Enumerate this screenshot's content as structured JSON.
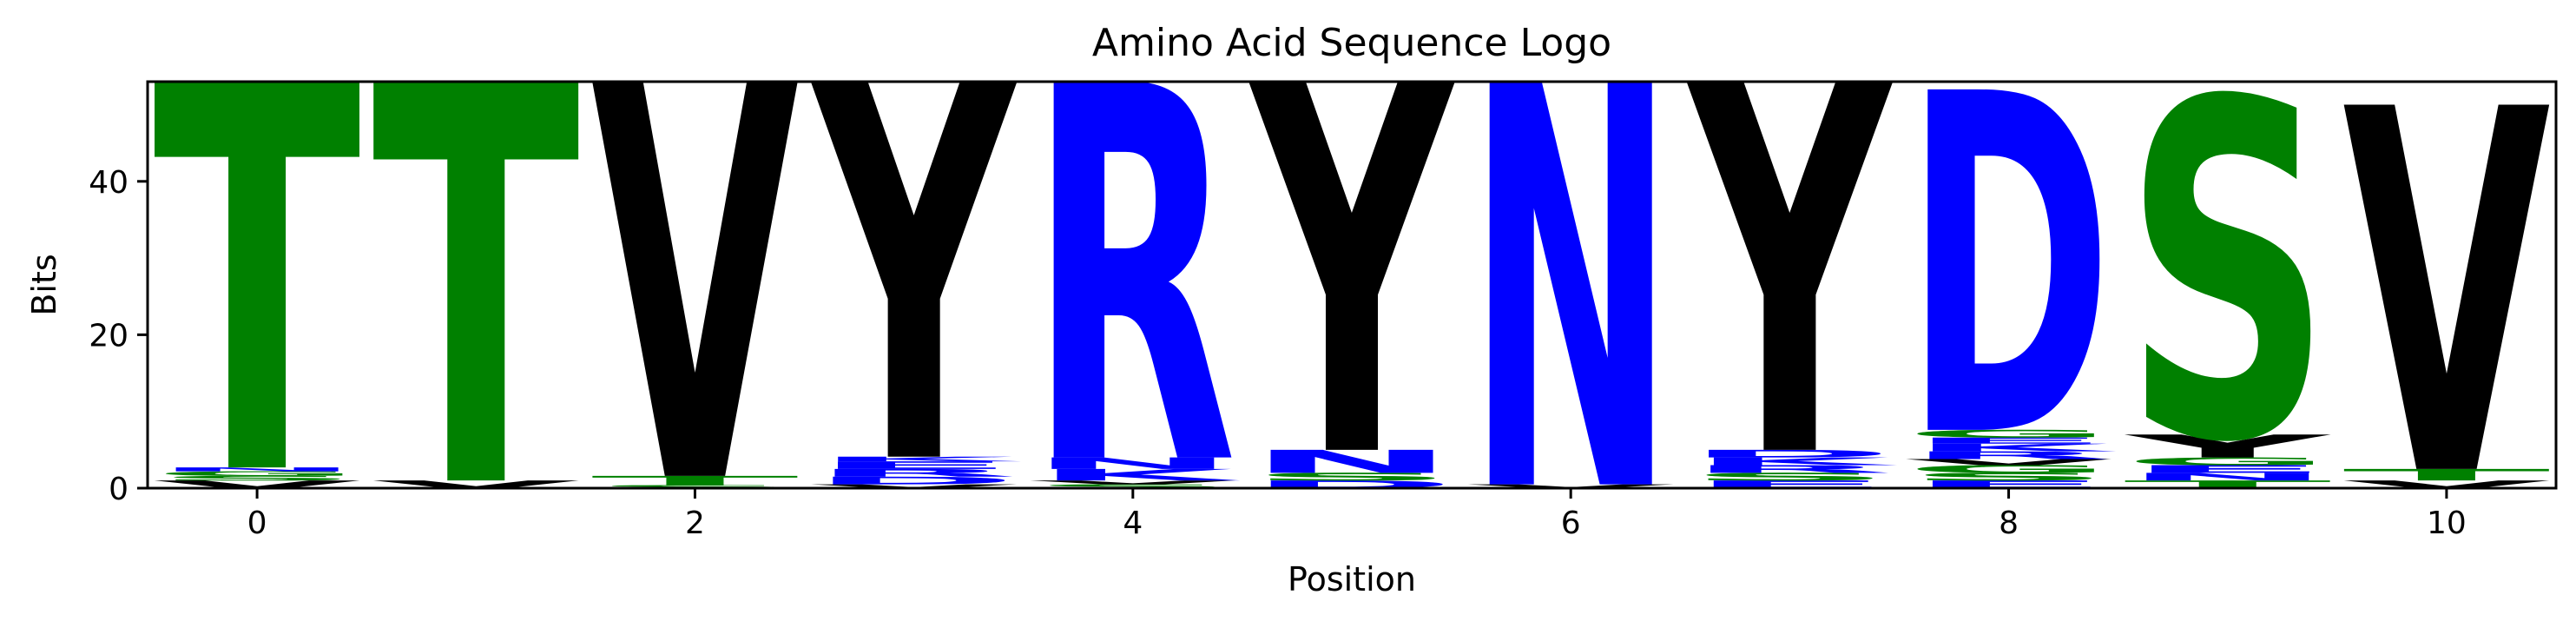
{
  "chart_data": {
    "type": "sequence-logo",
    "title": "Amino Acid Sequence Logo",
    "xlabel": "Position",
    "ylabel": "Bits",
    "xlim": [
      -0.5,
      10.5
    ],
    "ylim": [
      0,
      53
    ],
    "xticks": [
      0,
      2,
      4,
      6,
      8,
      10
    ],
    "yticks": [
      0,
      20,
      40
    ],
    "grid": false,
    "legend": "none",
    "colors": {
      "hydrophobic": "#000000",
      "polar": "#008000",
      "charged": "#0000ff"
    },
    "positions": [
      {
        "x": 0,
        "letters": [
          {
            "char": "V",
            "bits": 1.0,
            "color": "#000000"
          },
          {
            "char": "S",
            "bits": 0.6,
            "color": "#008000"
          },
          {
            "char": "G",
            "bits": 0.6,
            "color": "#008000"
          },
          {
            "char": "N",
            "bits": 0.5,
            "color": "#0000ff"
          },
          {
            "char": "T",
            "bits": 50.3,
            "color": "#008000"
          }
        ]
      },
      {
        "x": 1,
        "letters": [
          {
            "char": "V",
            "bits": 1.0,
            "color": "#000000"
          },
          {
            "char": "T",
            "bits": 52.0,
            "color": "#008000"
          }
        ]
      },
      {
        "x": 2,
        "letters": [
          {
            "char": "S",
            "bits": 0.4,
            "color": "#008000"
          },
          {
            "char": "T",
            "bits": 1.2,
            "color": "#008000"
          },
          {
            "char": "V",
            "bits": 51.4,
            "color": "#000000"
          }
        ]
      },
      {
        "x": 3,
        "letters": [
          {
            "char": "V",
            "bits": 0.5,
            "color": "#000000"
          },
          {
            "char": "D",
            "bits": 1.0,
            "color": "#0000ff"
          },
          {
            "char": "R",
            "bits": 1.0,
            "color": "#0000ff"
          },
          {
            "char": "E",
            "bits": 1.0,
            "color": "#0000ff"
          },
          {
            "char": "K",
            "bits": 0.6,
            "color": "#0000ff"
          },
          {
            "char": "Y",
            "bits": 48.9,
            "color": "#000000"
          }
        ]
      },
      {
        "x": 4,
        "letters": [
          {
            "char": "S",
            "bits": 0.5,
            "color": "#008000"
          },
          {
            "char": "V",
            "bits": 0.5,
            "color": "#000000"
          },
          {
            "char": "K",
            "bits": 1.5,
            "color": "#0000ff"
          },
          {
            "char": "N",
            "bits": 1.5,
            "color": "#0000ff"
          },
          {
            "char": "R",
            "bits": 49.0,
            "color": "#0000ff"
          }
        ]
      },
      {
        "x": 5,
        "letters": [
          {
            "char": "D",
            "bits": 1.0,
            "color": "#0000ff"
          },
          {
            "char": "S",
            "bits": 1.0,
            "color": "#008000"
          },
          {
            "char": "N",
            "bits": 3.0,
            "color": "#0000ff"
          },
          {
            "char": "Y",
            "bits": 48.0,
            "color": "#000000"
          }
        ]
      },
      {
        "x": 6,
        "letters": [
          {
            "char": "V",
            "bits": 0.5,
            "color": "#000000"
          },
          {
            "char": "N",
            "bits": 52.5,
            "color": "#0000ff"
          }
        ]
      },
      {
        "x": 7,
        "letters": [
          {
            "char": "E",
            "bits": 1.0,
            "color": "#0000ff"
          },
          {
            "char": "S",
            "bits": 1.0,
            "color": "#008000"
          },
          {
            "char": "R",
            "bits": 1.0,
            "color": "#0000ff"
          },
          {
            "char": "K",
            "bits": 1.0,
            "color": "#0000ff"
          },
          {
            "char": "D",
            "bits": 1.0,
            "color": "#0000ff"
          },
          {
            "char": "Y",
            "bits": 48.0,
            "color": "#000000"
          }
        ]
      },
      {
        "x": 8,
        "letters": [
          {
            "char": "E",
            "bits": 1.0,
            "color": "#0000ff"
          },
          {
            "char": "S",
            "bits": 1.0,
            "color": "#008000"
          },
          {
            "char": "G",
            "bits": 1.0,
            "color": "#008000"
          },
          {
            "char": "V",
            "bits": 0.8,
            "color": "#000000"
          },
          {
            "char": "R",
            "bits": 1.0,
            "color": "#0000ff"
          },
          {
            "char": "K",
            "bits": 1.0,
            "color": "#0000ff"
          },
          {
            "char": "E",
            "bits": 0.8,
            "color": "#0000ff"
          },
          {
            "char": "G",
            "bits": 1.0,
            "color": "#008000"
          },
          {
            "char": "D",
            "bits": 44.4,
            "color": "#0000ff"
          }
        ]
      },
      {
        "x": 9,
        "letters": [
          {
            "char": "T",
            "bits": 1.0,
            "color": "#008000"
          },
          {
            "char": "N",
            "bits": 1.0,
            "color": "#0000ff"
          },
          {
            "char": "E",
            "bits": 1.0,
            "color": "#0000ff"
          },
          {
            "char": "G",
            "bits": 1.0,
            "color": "#008000"
          },
          {
            "char": "Y",
            "bits": 3.0,
            "color": "#000000"
          },
          {
            "char": "S",
            "bits": 44.0,
            "color": "#008000"
          }
        ]
      },
      {
        "x": 10,
        "letters": [
          {
            "char": "V",
            "bits": 1.0,
            "color": "#000000"
          },
          {
            "char": "T",
            "bits": 1.5,
            "color": "#008000"
          },
          {
            "char": "V",
            "bits": 47.5,
            "color": "#000000"
          }
        ]
      }
    ]
  }
}
